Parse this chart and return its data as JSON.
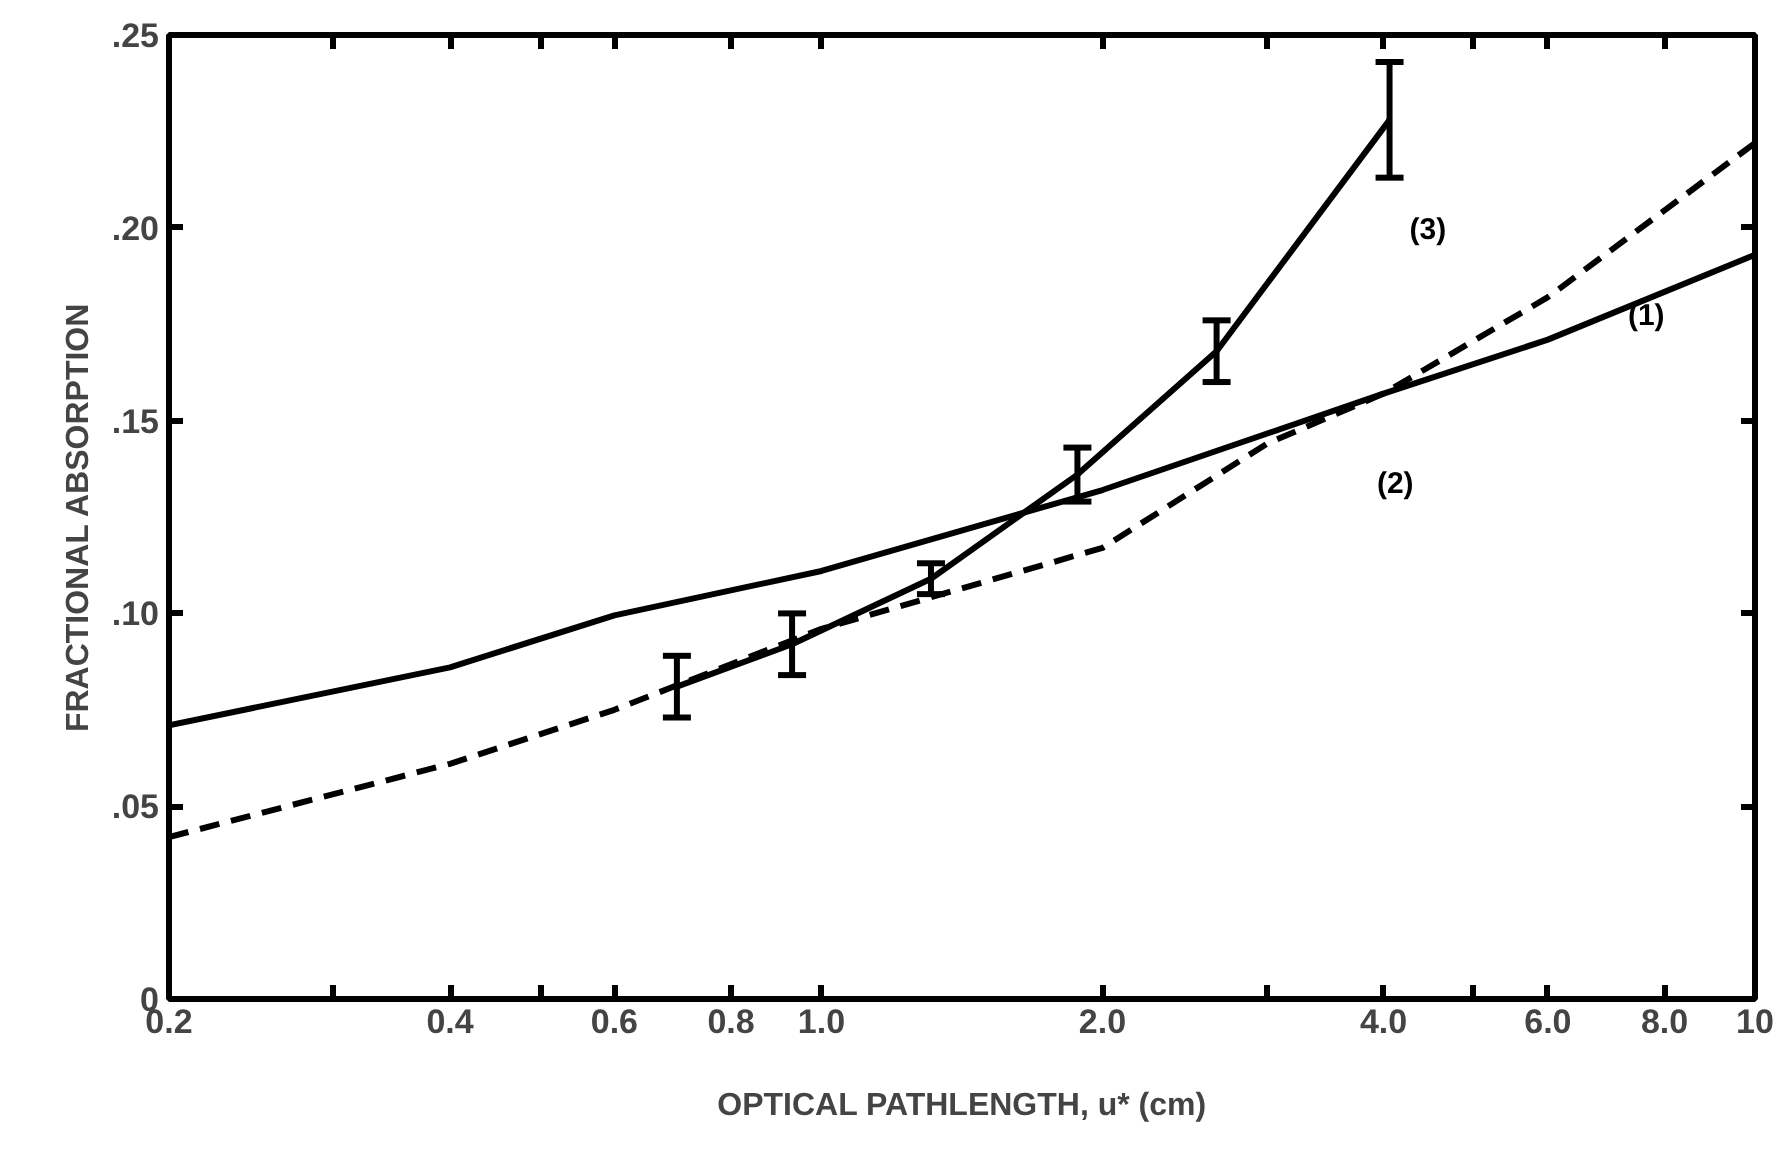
{
  "chart_data": {
    "type": "line",
    "xlabel": "OPTICAL PATHLENGTH, u* (cm)",
    "ylabel": "FRACTIONAL ABSORPTION",
    "log": "x",
    "xlim": [
      0.2,
      10
    ],
    "ylim": [
      0,
      0.25
    ],
    "xticks": [
      {
        "value": 0.2,
        "label": "0.2"
      },
      {
        "value": 0.3,
        "label": null
      },
      {
        "value": 0.4,
        "label": "0.4"
      },
      {
        "value": 0.5,
        "label": null
      },
      {
        "value": 0.6,
        "label": "0.6"
      },
      {
        "value": 0.8,
        "label": "0.8"
      },
      {
        "value": 1.0,
        "label": "1.0"
      },
      {
        "value": 2.0,
        "label": "2.0"
      },
      {
        "value": 3.0,
        "label": null
      },
      {
        "value": 4.0,
        "label": "4.0"
      },
      {
        "value": 5.0,
        "label": null
      },
      {
        "value": 6.0,
        "label": "6.0"
      },
      {
        "value": 8.0,
        "label": "8.0"
      },
      10
    ],
    "yticks": [
      0,
      {
        "value": 0.05,
        "label": ".05"
      },
      {
        "value": 0.1,
        "label": ".10"
      },
      {
        "value": 0.15,
        "label": ".15"
      },
      {
        "value": 0.2,
        "label": ".20"
      },
      {
        "value": 0.25,
        "label": ".25"
      }
    ],
    "grid": false,
    "legend": false,
    "marker": "none",
    "series": [
      {
        "name": "(1)",
        "color": "#000000",
        "line_style": "solid",
        "x": [
          0.2,
          0.4,
          0.6,
          1.0,
          2.0,
          4.0,
          6.0,
          10
        ],
        "values": [
          0.071,
          0.086,
          0.0995,
          0.111,
          0.132,
          0.157,
          0.171,
          0.193
        ]
      },
      {
        "name": "(2)",
        "color": "#000000",
        "line_style": "dashed",
        "x": [
          0.2,
          0.4,
          0.6,
          1.0,
          2.0,
          3.0,
          4.0,
          6.0,
          10
        ],
        "values": [
          0.042,
          0.061,
          0.075,
          0.096,
          0.117,
          0.144,
          0.157,
          0.182,
          0.222
        ]
      },
      {
        "name": "(3)",
        "color": "#000000",
        "line_style": "solid",
        "x": [
          0.7,
          0.93,
          1.31,
          1.88,
          2.65,
          4.06
        ],
        "values": [
          0.081,
          0.092,
          0.109,
          0.136,
          0.168,
          0.228
        ],
        "errors": [
          0.008,
          0.008,
          0.004,
          0.007,
          0.008,
          0.015
        ]
      }
    ]
  }
}
